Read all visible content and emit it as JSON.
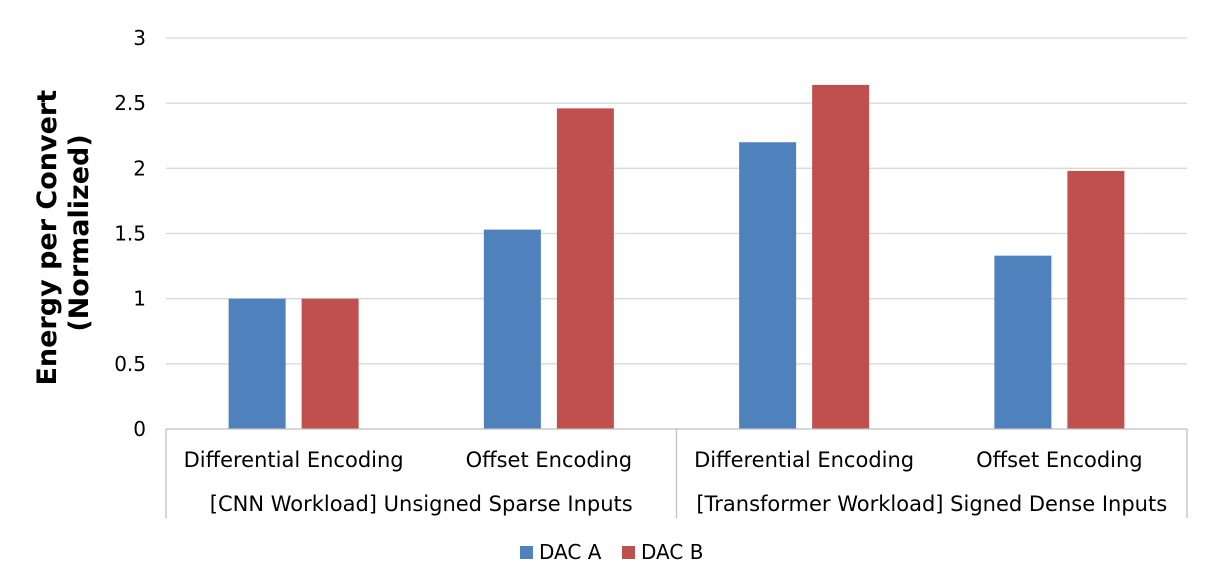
{
  "chart_data": {
    "type": "bar",
    "title": "",
    "ylabel_lines": [
      "Energy per Convert",
      "(Normalized)"
    ],
    "ylim": [
      0,
      3
    ],
    "yticks": [
      0,
      0.5,
      1,
      1.5,
      2,
      2.5,
      3
    ],
    "ytick_labels": [
      "0",
      "0.5",
      "1",
      "1.5",
      "2",
      "2.5",
      "3"
    ],
    "grid": true,
    "legend_position": "bottom",
    "categories": [
      "Differential Encoding",
      "Offset Encoding",
      "Differential Encoding",
      "Offset Encoding"
    ],
    "groups": [
      {
        "label": "[CNN Workload] Unsigned Sparse Inputs",
        "categories": [
          0,
          1
        ]
      },
      {
        "label": "[Transformer Workload] Signed Dense Inputs",
        "categories": [
          2,
          3
        ]
      }
    ],
    "series": [
      {
        "name": "DAC A",
        "color": "#4f81bd",
        "values": [
          1.0,
          1.53,
          2.2,
          1.33
        ]
      },
      {
        "name": "DAC B",
        "color": "#c0504d",
        "values": [
          1.0,
          2.46,
          2.64,
          1.98
        ]
      }
    ]
  }
}
